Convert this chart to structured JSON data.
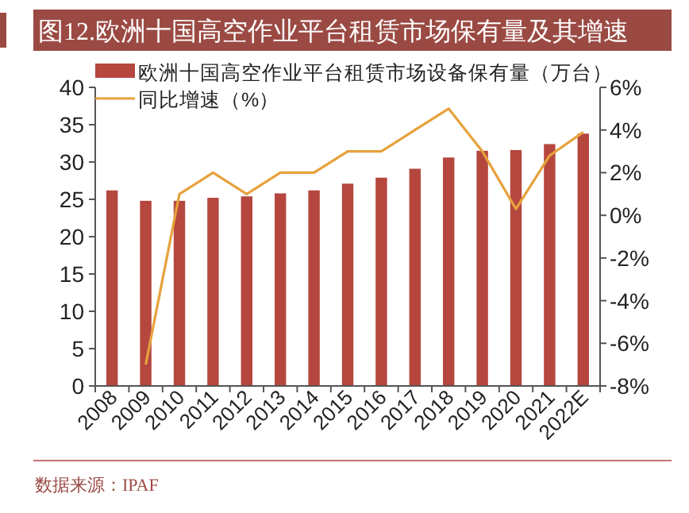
{
  "chart_data": {
    "type": "bar",
    "title": "图12.欧洲十国高空作业平台租赁市场保有量及其增速",
    "categories": [
      "2008",
      "2009",
      "2010",
      "2011",
      "2012",
      "2013",
      "2014",
      "2015",
      "2016",
      "2017",
      "2018",
      "2019",
      "2020",
      "2021",
      "2022E"
    ],
    "series": [
      {
        "name": "欧洲十国高空作业平台租赁市场设备保有量（万台）",
        "color": "#b5473f",
        "values": [
          26.2,
          24.8,
          24.8,
          25.2,
          25.4,
          25.8,
          26.2,
          27.1,
          27.9,
          29.1,
          30.6,
          31.5,
          31.6,
          32.4,
          33.8
        ]
      },
      {
        "name": "同比增速（%）",
        "type": "line",
        "axis": "y2",
        "color": "#e6a23c",
        "values": [
          null,
          -7,
          1,
          2,
          1,
          2,
          2,
          3,
          3,
          4,
          5,
          3,
          0.3,
          2.8,
          3.9
        ]
      }
    ],
    "ylim": [
      0,
      40
    ],
    "yticks": [
      0,
      5,
      10,
      15,
      20,
      25,
      30,
      35,
      40
    ],
    "y2lim": [
      -8,
      6
    ],
    "y2ticks": [
      {
        "value": -8,
        "label": "-8%"
      },
      {
        "value": -6,
        "label": "-6%"
      },
      {
        "value": -4,
        "label": "-4%"
      },
      {
        "value": -2,
        "label": "-2%"
      },
      {
        "value": 0,
        "label": "0%"
      },
      {
        "value": 2,
        "label": "2%"
      },
      {
        "value": 4,
        "label": "4%"
      },
      {
        "value": 6,
        "label": "6%"
      }
    ],
    "legend": "top left",
    "grid": false,
    "annotations": [
      "数据来源：IPAF"
    ]
  }
}
